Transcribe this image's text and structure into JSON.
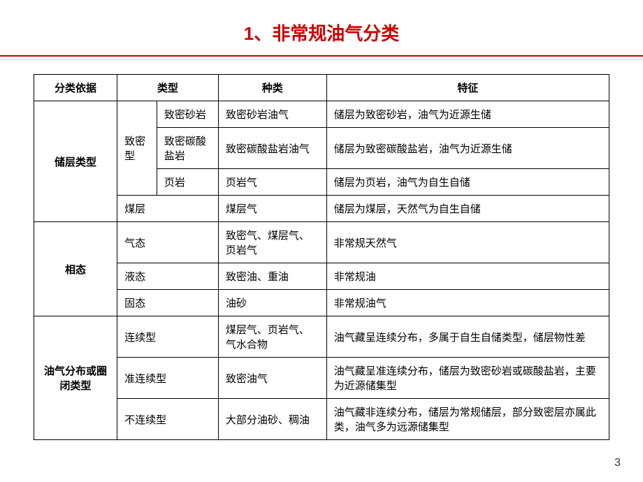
{
  "title": "1、非常规油气分类",
  "page_number": "3",
  "columns": [
    "分类依据",
    "类型",
    "种类",
    "特征"
  ],
  "group1": {
    "header": "储层类型",
    "subheader1": "致密型",
    "rows": [
      {
        "subtype": "致密砂岩",
        "kind": "致密砂岩油气",
        "feature": "储层为致密砂岩，油气为近源生储"
      },
      {
        "subtype": "致密碳酸盐岩",
        "kind": "致密碳酸盐岩油气",
        "feature": "储层为致密碳酸盐岩，油气为近源生储"
      },
      {
        "subtype": "页岩",
        "kind": "页岩气",
        "feature": "储层为页岩，油气为自生自储"
      }
    ],
    "row4": {
      "type": "煤层",
      "kind": "煤层气",
      "feature": "储层为煤层，天然气为自生自储"
    }
  },
  "group2": {
    "header": "相态",
    "rows": [
      {
        "type": "气态",
        "kind": "致密气、煤层气、页岩气",
        "feature": "非常规天然气"
      },
      {
        "type": "液态",
        "kind": "致密油、重油",
        "feature": "非常规油"
      },
      {
        "type": "固态",
        "kind": "油砂",
        "feature": "非常规油气"
      }
    ]
  },
  "group3": {
    "header": "油气分布或圈闭类型",
    "rows": [
      {
        "type": "连续型",
        "kind": "煤层气、页岩气、气水合物",
        "feature": "油气藏呈连续分布，多属于自生自储类型，储层物性差"
      },
      {
        "type": "准连续型",
        "kind": "致密油气",
        "feature": "油气藏呈准连续分布，储层为致密砂岩或碳酸盐岩，主要为近源储集型"
      },
      {
        "type": "不连续型",
        "kind": "大部分油砂、稠油",
        "feature": "油气藏非连续分布，储层为常规储层，部分致密层亦属此类，油气多为远源储集型"
      }
    ]
  }
}
